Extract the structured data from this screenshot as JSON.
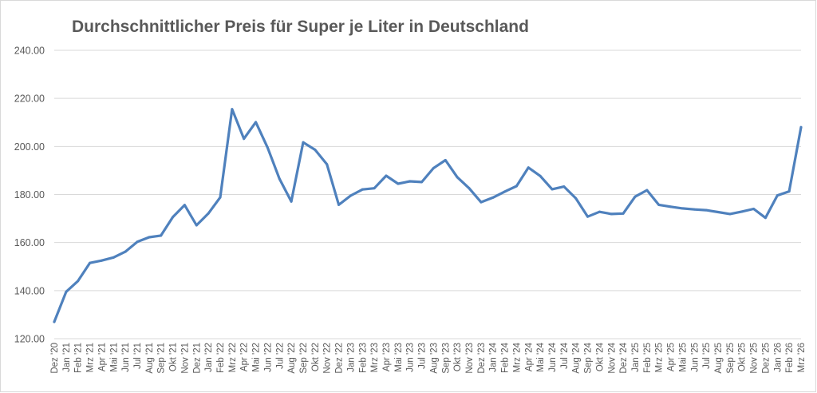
{
  "chart_data": {
    "type": "line",
    "title": "Durchschnittlicher Preis für Super je Liter in Deutschland",
    "xlabel": "",
    "ylabel": "",
    "ylim": [
      120,
      240
    ],
    "yticks": [
      120,
      140,
      160,
      180,
      200,
      220,
      240
    ],
    "ytick_labels": [
      "120.00",
      "140.00",
      "160.00",
      "180.00",
      "200.00",
      "220.00",
      "240.00"
    ],
    "grid": true,
    "legend": "none",
    "colors": {
      "line": "#4f81bd",
      "grid": "#d9d9d9",
      "text": "#595959"
    },
    "categories": [
      "Dez '20",
      "Jan '21",
      "Feb '21",
      "Mrz '21",
      "Apr '21",
      "Mai '21",
      "Jun '21",
      "Jul '21",
      "Aug '21",
      "Sep '21",
      "Okt '21",
      "Nov '21",
      "Dez '21",
      "Jan '22",
      "Feb '22",
      "Mrz '22",
      "Apr '22",
      "Mai '22",
      "Jun '22",
      "Jul '22",
      "Aug '22",
      "Sep '22",
      "Okt '22",
      "Nov '22",
      "Dez '22",
      "Jan '23",
      "Feb '23",
      "Mrz '23",
      "Apr '23",
      "Mai '23",
      "Jun '23",
      "Jul '23",
      "Aug '23",
      "Sep '23",
      "Okt '23",
      "Nov '23",
      "Dez '23",
      "Jan '24",
      "Feb '24",
      "Mrz '24",
      "Apr '24",
      "Mai '24",
      "Jun '24",
      "Jul '24",
      "Aug '24",
      "Sep '24",
      "Okt '24",
      "Nov '24",
      "Dez '24",
      "Jan '25",
      "Feb '25",
      "Mrz '25",
      "Apr '25",
      "Mai '25",
      "Jun '25",
      "Jul '25",
      "Aug '25",
      "Sep '25",
      "Okt '25",
      "Nov '25",
      "Dez '25",
      "Jan '26",
      "Feb '26",
      "Mrz '26"
    ],
    "series": [
      {
        "name": "Super",
        "values": [
          127,
          139.5,
          144,
          151.5,
          152.5,
          153.8,
          156.2,
          160.3,
          162.2,
          162.9,
          170.6,
          175.6,
          167.2,
          172.1,
          178.8,
          215.5,
          203.2,
          210.1,
          199.5,
          186.5,
          177.1,
          201.7,
          198.6,
          192.6,
          175.7,
          179.5,
          182.1,
          182.6,
          187.8,
          184.5,
          185.5,
          185.2,
          191.0,
          194.3,
          187.2,
          182.6,
          176.8,
          178.7,
          181.2,
          183.5,
          191.2,
          187.7,
          182.2,
          183.3,
          178.4,
          170.8,
          172.8,
          171.9,
          172.1,
          179.1,
          181.8,
          175.7,
          174.9,
          174.2,
          173.8,
          173.5,
          172.7,
          171.9,
          172.9,
          174.0,
          170.3,
          179.6,
          181.3,
          208.0
        ]
      }
    ]
  }
}
